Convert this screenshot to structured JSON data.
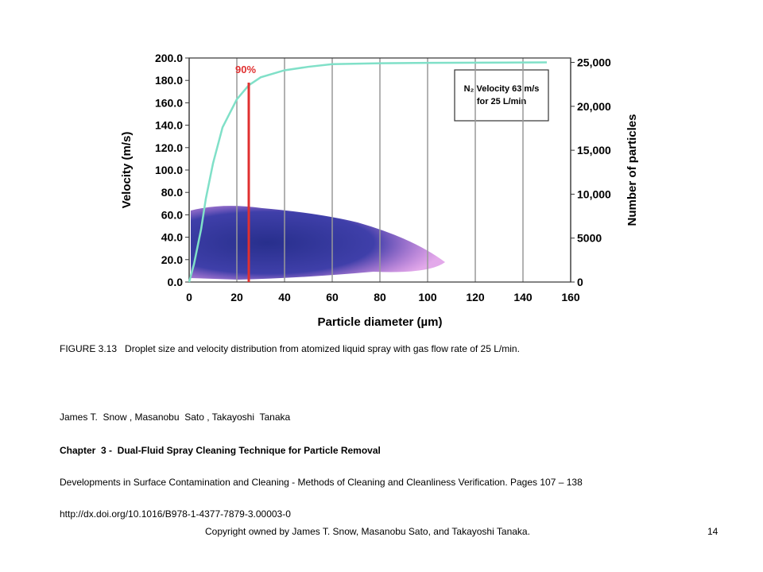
{
  "chart_data": {
    "type": "line",
    "xlabel": "Particle diameter (µm)",
    "ylabel": "Velocity (m/s)",
    "y2label": "Number of particles",
    "xlim": [
      0,
      160
    ],
    "xticks": [
      0,
      20,
      40,
      60,
      80,
      100,
      120,
      140,
      160
    ],
    "ylim": [
      0,
      200
    ],
    "yticks": [
      {
        "value": 0,
        "label": "0.0"
      },
      {
        "value": 20,
        "label": "20.0"
      },
      {
        "value": 40,
        "label": "40.0"
      },
      {
        "value": 60,
        "label": "60.0"
      },
      {
        "value": 80,
        "label": "80.0"
      },
      {
        "value": 100,
        "label": "100.0"
      },
      {
        "value": 120,
        "label": "120.0"
      },
      {
        "value": 140,
        "label": "140.0"
      },
      {
        "value": 160,
        "label": "160.0"
      },
      {
        "value": 180,
        "label": "180.0"
      },
      {
        "value": 200,
        "label": "200.0"
      }
    ],
    "y2lim": [
      0,
      25500
    ],
    "y2ticks": [
      0,
      5000,
      {
        "value": 10000,
        "label": "10,000"
      },
      {
        "value": 15000,
        "label": "15,000"
      },
      {
        "value": 20000,
        "label": "20,000"
      },
      {
        "value": 25000,
        "label": "25,000"
      }
    ],
    "grid": true,
    "series": [
      {
        "axis": "y2",
        "color": "#80e0c8",
        "x": [
          0,
          2,
          5,
          7,
          10,
          14,
          20,
          25,
          30,
          40,
          50,
          60,
          80,
          100,
          150
        ],
        "values": [
          0,
          2000,
          6000,
          9500,
          13500,
          17600,
          20800,
          22400,
          23300,
          24100,
          24500,
          24800,
          24900,
          24950,
          25000
        ]
      }
    ],
    "marker": {
      "x": 25,
      "y": 178,
      "label": "90%",
      "color": "#e03030"
    },
    "annotation": [
      "N₂ Velocity 63 m/s",
      "for 25 L/min"
    ]
  },
  "caption": "FIGURE 3.13   Droplet size and velocity distribution from atomized liquid spray with gas flow rate of 25 L/min.",
  "authors": "James T.  Snow , Masanobu  Sato , Takayoshi  Tanaka",
  "chapter": "Chapter  3 -  Dual-Fluid Spray Cleaning Technique for Particle Removal",
  "book": "Developments in Surface Contamination and Cleaning - Methods of Cleaning and Cleanliness Verification. Pages 107 – 138",
  "url": "http://dx.doi.org/10.1016/B978-1-4377-7879-3.00003-0",
  "footer": "Copyright owned by James T. Snow, Masanobu Sato, and Takayoshi Tanaka.",
  "page": "14"
}
